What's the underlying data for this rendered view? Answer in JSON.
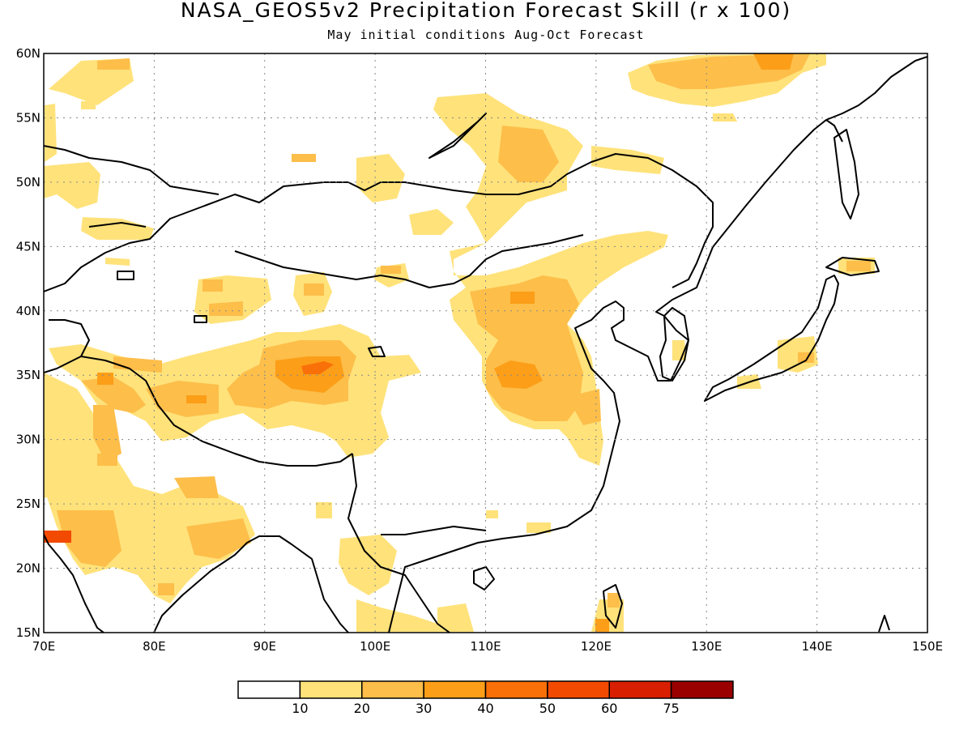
{
  "title": "NASA_GEOS5v2 Precipitation Forecast Skill (r x 100)",
  "subtitle": "May initial conditions  Aug-Oct Forecast",
  "map": {
    "lon_range": [
      70,
      150
    ],
    "lat_range": [
      15,
      60
    ],
    "lon_ticks": [
      "70E",
      "80E",
      "90E",
      "100E",
      "110E",
      "120E",
      "130E",
      "140E",
      "150E"
    ],
    "lat_ticks": [
      "60N",
      "55N",
      "50N",
      "45N",
      "40N",
      "35N",
      "30N",
      "25N",
      "20N",
      "15N"
    ],
    "grid": "dotted"
  },
  "colorbar": {
    "labels": [
      "10",
      "20",
      "30",
      "40",
      "50",
      "60",
      "75"
    ],
    "colors": [
      "#ffffff",
      "#ffe27a",
      "#fdbe4a",
      "#fc9e18",
      "#f97008",
      "#f24a00",
      "#d81f00",
      "#9a0000"
    ]
  },
  "chart_data": {
    "type": "heatmap",
    "title": "NASA_GEOS5v2 Precipitation Forecast Skill (r x 100)",
    "subtitle": "May initial conditions  Aug-Oct Forecast",
    "x_range": [
      70,
      150
    ],
    "y_range": [
      15,
      60
    ],
    "levels": [
      10,
      20,
      30,
      40,
      50,
      60,
      75
    ],
    "regions": [
      {
        "lon": [
          70,
          73
        ],
        "lat": [
          21,
          23
        ],
        "level": 50
      },
      {
        "lon": [
          71,
          80
        ],
        "lat": [
          19,
          24
        ],
        "level": 20
      },
      {
        "lon": [
          83,
          98
        ],
        "lat": [
          33,
          37
        ],
        "level": 20
      },
      {
        "lon": [
          89,
          99
        ],
        "lat": [
          33,
          37
        ],
        "level": 30
      },
      {
        "lon": [
          92,
          97
        ],
        "lat": [
          35,
          36
        ],
        "level": 40
      },
      {
        "lon": [
          103,
          116
        ],
        "lat": [
          30,
          43
        ],
        "level": 20
      },
      {
        "lon": [
          111,
          115
        ],
        "lat": [
          33,
          36
        ],
        "level": 30
      },
      {
        "lon": [
          120,
          121
        ],
        "lat": [
          15,
          17
        ],
        "level": 30
      },
      {
        "lon": [
          125,
          140
        ],
        "lat": [
          55,
          60
        ],
        "level": 20
      },
      {
        "lon": [
          142,
          145
        ],
        "lat": [
          43,
          44
        ],
        "level": 20
      }
    ]
  }
}
